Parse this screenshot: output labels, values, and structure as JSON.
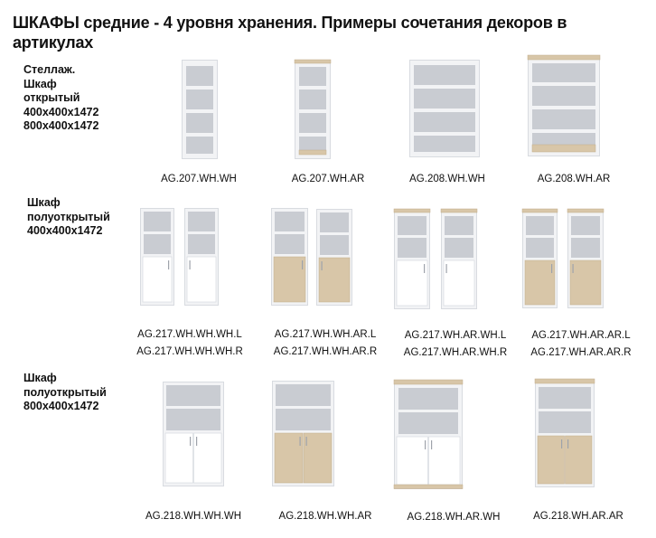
{
  "title": "ШКАФЫ средние - 4 уровня хранения. Примеры сочетания декоров в артикулах",
  "colors": {
    "white_body": "#f2f3f5",
    "white_edge": "#d8dbe0",
    "shelf_interior": "#c9ccd2",
    "oak_decor": "#d8c6a8",
    "oak_edge": "#c2ad8c"
  },
  "sections": [
    {
      "label": [
        "Стеллаж.",
        "Шкаф",
        "открытый",
        "400x400x1472",
        "800x400x1472"
      ],
      "items": [
        {
          "codes": [
            "AG.207.WH.WH"
          ]
        },
        {
          "codes": [
            "AG.207.WH.AR"
          ]
        },
        {
          "codes": [
            "AG.208.WH.WH"
          ]
        },
        {
          "codes": [
            "AG.208.WH.AR"
          ]
        }
      ]
    },
    {
      "label": [
        "Шкаф",
        "полуоткрытый",
        "400x400x1472"
      ],
      "items": [
        {
          "codes": [
            "AG.217.WH.WH.WH.L",
            "AG.217.WH.WH.WH.R"
          ]
        },
        {
          "codes": [
            "AG.217.WH.WH.AR.L",
            "AG.217.WH.WH.AR.R"
          ]
        },
        {
          "codes": [
            "AG.217.WH.AR.WH.L",
            "AG.217.WH.AR.WH.R"
          ]
        },
        {
          "codes": [
            "AG.217.WH.AR.AR.L",
            "AG.217.WH.AR.AR.R"
          ]
        }
      ]
    },
    {
      "label": [
        "Шкаф",
        "полуоткрытый",
        "800x400x1472"
      ],
      "items": [
        {
          "codes": [
            "AG.218.WH.WH.WH"
          ]
        },
        {
          "codes": [
            "AG.218.WH.WH.AR"
          ]
        },
        {
          "codes": [
            "AG.218.WH.AR.WH"
          ]
        },
        {
          "codes": [
            "AG.218.WH.AR.AR"
          ]
        }
      ]
    }
  ]
}
